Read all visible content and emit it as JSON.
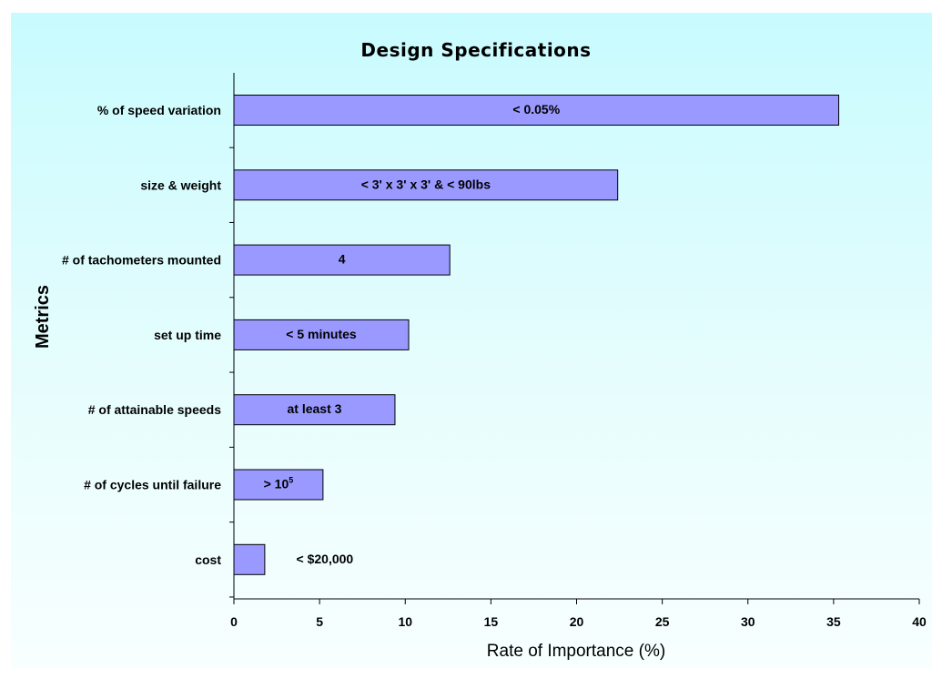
{
  "chart_data": {
    "type": "bar",
    "orientation": "horizontal",
    "title": "Design Specifications",
    "xlabel": "Rate of Importance (%)",
    "ylabel": "Metrics",
    "xlim": [
      0,
      40
    ],
    "x_ticks": [
      "0",
      "5",
      "10",
      "15",
      "20",
      "25",
      "30",
      "35",
      "40"
    ],
    "grid": false,
    "bar_color": "#9999ff",
    "background_color": "#ccffff",
    "categories": [
      "% of speed variation",
      "size & weight",
      "# of tachometers mounted",
      "set up time",
      "# of attainable speeds",
      "# of cycles until failure",
      "cost"
    ],
    "values": [
      35.3,
      22.4,
      12.6,
      10.2,
      9.4,
      5.2,
      1.8
    ],
    "data_labels": [
      {
        "text": "< 0.05%"
      },
      {
        "text": "< 3' x 3' x 3'  & < 90lbs"
      },
      {
        "text": "4"
      },
      {
        "text": "< 5 minutes"
      },
      {
        "text": "at least 3"
      },
      {
        "text": "> 10",
        "superscript": "5"
      },
      {
        "text": "< $20,000"
      }
    ]
  }
}
